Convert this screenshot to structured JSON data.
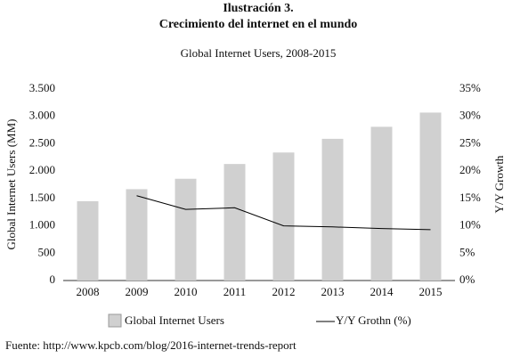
{
  "header": {
    "label": "Ilustración 3.",
    "title": "Crecimiento del internet en el mundo"
  },
  "chart_data": {
    "type": "bar-line",
    "title": "Global Internet Users, 2008-2015",
    "y_label": "Global Internet Users (MM)",
    "y2_label": "Y/Y Growth",
    "categories": [
      "2008",
      "2009",
      "2010",
      "2011",
      "2012",
      "2013",
      "2014",
      "2015"
    ],
    "series": [
      {
        "name": "Global Internet Users",
        "type": "bar",
        "color": "#d0d0d0",
        "values": [
          1450,
          1670,
          1860,
          2130,
          2340,
          2590,
          2810,
          3070
        ]
      },
      {
        "name": "Y/Y Grothn (%)",
        "type": "line",
        "axis": "y2",
        "color": "#000000",
        "values": [
          null,
          15.5,
          13,
          13.3,
          10,
          9.8,
          9.5,
          9.3
        ]
      }
    ],
    "ylim": [
      0,
      3500
    ],
    "yticks": [
      0,
      {
        "value": 500,
        "label": "500"
      },
      {
        "value": 1000,
        "label": "1.000"
      },
      {
        "value": 1500,
        "label": "1.500"
      },
      {
        "value": 2000,
        "label": "2.000"
      },
      {
        "value": 2500,
        "label": "2.500"
      },
      {
        "value": 3000,
        "label": "3.000"
      },
      {
        "value": 3500,
        "label": "3.500"
      }
    ],
    "y2lim": [
      0,
      35
    ],
    "y2ticks": [
      {
        "value": 0,
        "label": "0%"
      },
      {
        "value": 5,
        "label": "5%"
      },
      {
        "value": 10,
        "label": "10%"
      },
      {
        "value": 15,
        "label": "15%"
      },
      {
        "value": 20,
        "label": "20%"
      },
      {
        "value": 25,
        "label": "25%"
      },
      {
        "value": 30,
        "label": "30%"
      },
      {
        "value": 35,
        "label": "35%"
      }
    ],
    "grid": false
  },
  "source": "Fuente: http://www.kpcb.com/blog/2016-internet-trends-report"
}
